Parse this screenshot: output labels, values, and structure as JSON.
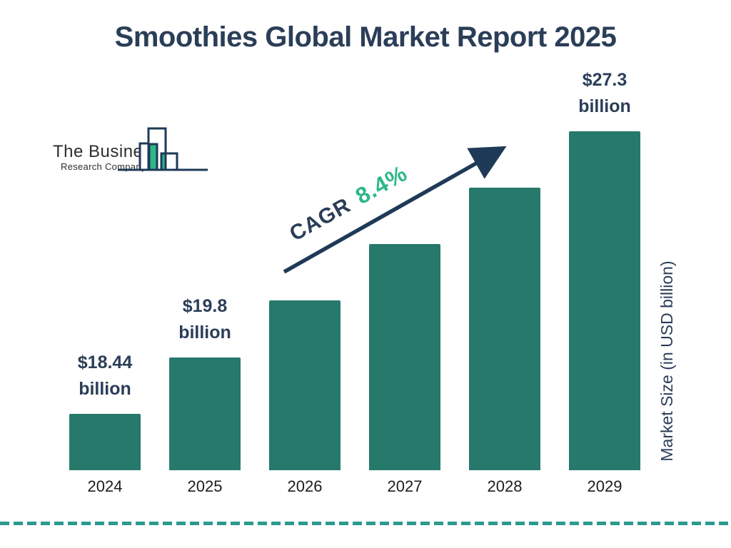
{
  "page": {
    "title": "Smoothies Global Market Report 2025"
  },
  "logo": {
    "name_line1": "The Business",
    "name_line2": "Research Company"
  },
  "chart_data": {
    "type": "bar",
    "title": "Smoothies Global Market Report 2025",
    "categories": [
      "2024",
      "2025",
      "2026",
      "2027",
      "2028",
      "2029"
    ],
    "values": [
      18.44,
      19.8,
      21.46,
      23.27,
      25.22,
      27.3
    ],
    "values_estimated": [
      "2026",
      "2027",
      "2028"
    ],
    "data_labels": [
      [
        "$18.44",
        "billion"
      ],
      [
        "$19.8",
        "billion"
      ],
      null,
      null,
      null,
      [
        "$27.3",
        "billion"
      ]
    ],
    "xlabel": "",
    "ylabel": "Market Size (in USD billion)",
    "annotation": {
      "label": "CAGR",
      "value": "8.4%"
    },
    "bar_color": "#26796B",
    "grid": false,
    "legend": false,
    "layout_hint": "bar heights rendered as equal visual steps, baseline not zero-scaled"
  },
  "colors": {
    "navy_text": "#2B3E58",
    "bar_teal": "#26796B",
    "accent_green": "#2DB78A",
    "dashed_line_teal": "#2A9B8E",
    "arrow_navy": "#1F3A57",
    "year_label": "#1C1C1C"
  }
}
